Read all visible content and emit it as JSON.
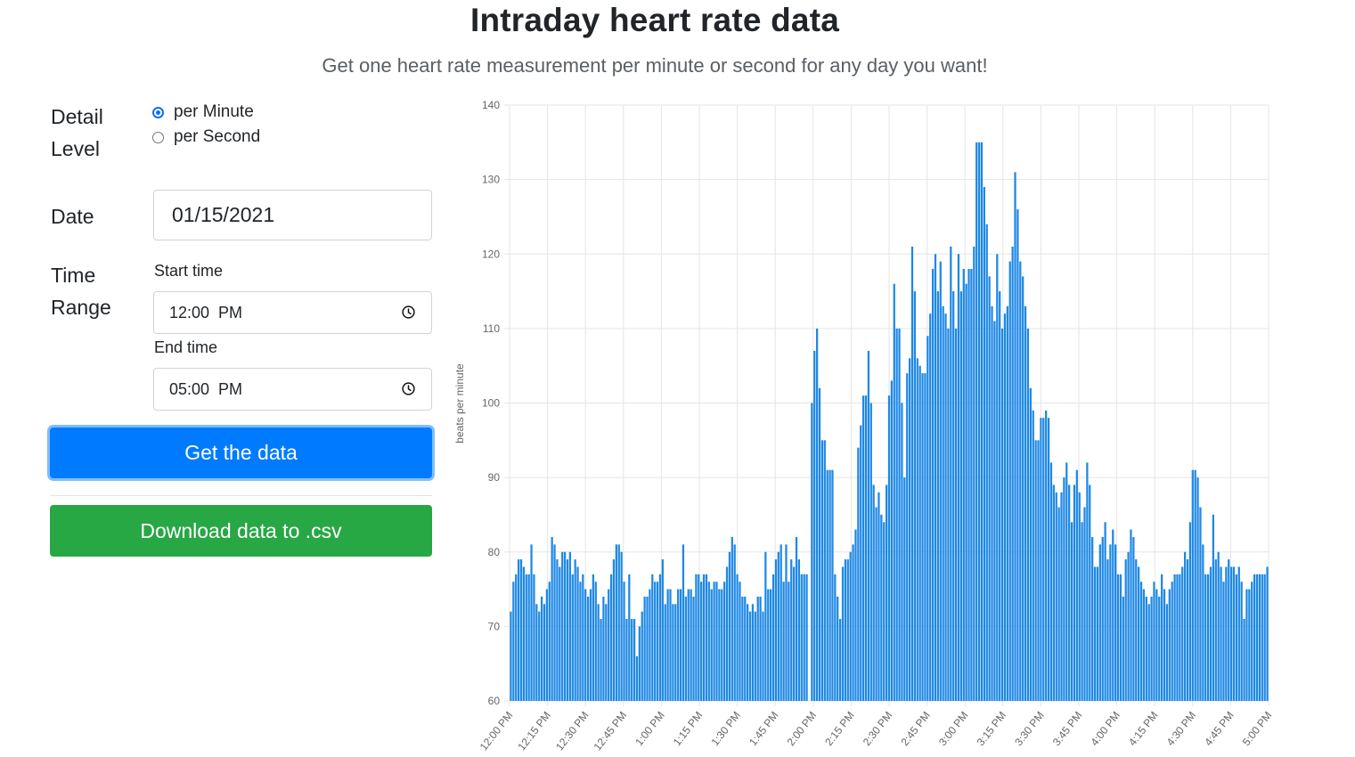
{
  "header": {
    "title": "Intraday heart rate data",
    "subtitle": "Get one heart rate measurement per minute or second for any day you want!"
  },
  "form": {
    "detail_level_label_1": "Detail",
    "detail_level_label_2": "Level",
    "options": [
      "per Minute",
      "per Second"
    ],
    "selected_option": "per Minute",
    "date_label": "Date",
    "date_value": "01/15/2021",
    "time_range_label_1": "Time",
    "time_range_label_2": "Range",
    "start_time_label": "Start time",
    "start_time_value": "12:00  PM",
    "end_time_label": "End time",
    "end_time_value": "05:00  PM",
    "get_button": "Get the data",
    "download_button": "Download data to .csv"
  },
  "colors": {
    "bar": "#1e88e5",
    "primary": "#007bff",
    "success": "#28a745",
    "grid": "#e5e5e5"
  },
  "chart_data": {
    "type": "bar",
    "title": "",
    "xlabel": "",
    "ylabel": "beats per minute",
    "ylim": [
      60,
      140
    ],
    "yticks": [
      60,
      70,
      80,
      90,
      100,
      110,
      120,
      130,
      140
    ],
    "grid": true,
    "x_start": "12:00 PM",
    "x_end": "5:00 PM",
    "xtick_labels": [
      "12:00 PM",
      "12:15 PM",
      "12:30 PM",
      "12:45 PM",
      "1:00 PM",
      "1:15 PM",
      "1:30 PM",
      "1:45 PM",
      "2:00 PM",
      "2:15 PM",
      "2:30 PM",
      "2:45 PM",
      "3:00 PM",
      "3:15 PM",
      "3:30 PM",
      "3:45 PM",
      "4:00 PM",
      "4:15 PM",
      "4:30 PM",
      "4:45 PM",
      "5:00 PM"
    ],
    "series": [
      {
        "values": [
          72,
          76,
          77,
          79,
          79,
          78,
          77,
          77,
          81,
          77,
          73,
          72,
          74,
          73,
          75,
          76,
          82,
          81,
          79,
          78,
          80,
          80,
          79,
          80,
          77,
          79,
          78,
          76,
          77,
          75,
          74,
          75,
          77,
          76,
          73,
          71,
          74,
          73,
          75,
          77,
          79,
          81,
          81,
          80,
          76,
          71,
          77,
          71,
          71,
          66,
          70,
          72,
          74,
          74,
          75,
          77,
          76,
          76,
          77,
          79,
          73,
          75,
          75,
          73,
          73,
          75,
          75,
          81,
          74,
          75,
          75,
          74,
          77,
          77,
          76,
          77,
          77,
          76,
          75,
          76,
          76,
          75,
          75,
          76,
          78,
          80,
          82,
          81,
          77,
          76,
          74,
          74,
          73,
          72,
          73,
          72,
          74,
          74,
          72,
          80,
          75,
          75,
          77,
          79,
          80,
          81,
          76,
          81,
          76,
          79,
          78,
          82,
          79,
          77,
          77,
          77,
          59,
          100,
          107,
          110,
          102,
          95,
          95,
          91,
          91,
          91,
          77,
          74,
          71,
          78,
          79,
          79,
          80,
          81,
          83,
          94,
          97,
          101,
          101,
          107,
          100,
          89,
          86,
          88,
          85,
          84,
          89,
          101,
          103,
          116,
          110,
          110,
          100,
          90,
          104,
          106,
          121,
          115,
          106,
          105,
          104,
          104,
          109,
          112,
          118,
          120,
          115,
          119,
          113,
          112,
          110,
          121,
          115,
          110,
          120,
          115,
          118,
          116,
          118,
          118,
          121,
          135,
          135,
          135,
          129,
          124,
          117,
          113,
          111,
          120,
          115,
          110,
          112,
          113,
          119,
          121,
          131,
          126,
          119,
          117,
          113,
          110,
          102,
          99,
          95,
          95,
          98,
          98,
          99,
          98,
          92,
          89,
          88,
          86,
          88,
          90,
          92,
          89,
          84,
          89,
          91,
          88,
          84,
          86,
          92,
          89,
          82,
          78,
          78,
          81,
          82,
          84,
          79,
          81,
          83,
          81,
          77,
          77,
          74,
          79,
          80,
          83,
          82,
          79,
          78,
          76,
          75,
          74,
          73,
          74,
          76,
          75,
          74,
          77,
          75,
          73,
          75,
          76,
          77,
          77,
          77,
          78,
          80,
          79,
          84,
          91,
          91,
          90,
          86,
          81,
          77,
          77,
          78,
          85,
          79,
          80,
          78,
          76,
          78,
          79,
          78,
          78,
          77,
          78,
          76,
          71,
          75,
          75,
          76,
          77,
          77,
          77,
          77,
          77,
          78
        ]
      }
    ]
  }
}
